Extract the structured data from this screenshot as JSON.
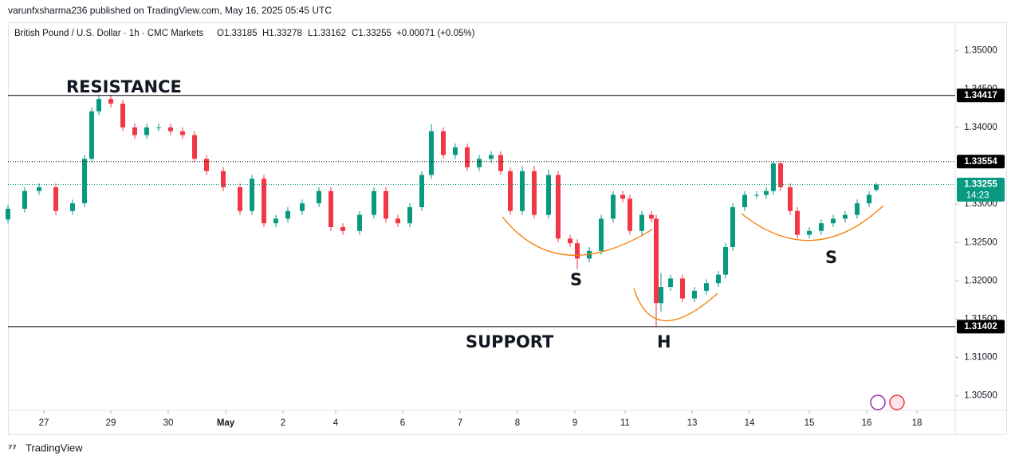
{
  "header": "varunfxsharma236 published on TradingView.com, May 16, 2025 05:45 UTC",
  "footer": "TradingView",
  "chart_data": {
    "type": "candlestick",
    "legend": {
      "symbol": "British Pound / U.S. Dollar · 1h · CMC Markets",
      "open": "O1.33185",
      "high": "H1.33278",
      "low": "L1.33162",
      "close": "C1.33255",
      "change": "+0.00071 (+0.05%)"
    },
    "x": [
      0,
      7,
      13,
      20,
      27,
      32,
      35,
      38,
      43,
      48,
      53,
      58,
      63,
      68,
      73,
      78,
      83,
      90,
      97,
      102,
      107,
      112,
      117,
      123,
      130,
      135,
      140,
      147,
      153,
      158,
      163,
      168,
      173,
      177,
      182,
      187,
      192,
      197,
      202,
      206,
      210,
      215,
      220,
      226,
      230,
      235,
      238,
      243,
      248,
      253,
      257,
      260,
      265,
      269,
      271,
      273,
      277,
      282,
      287,
      292,
      297,
      300,
      303,
      308,
      313,
      317,
      320,
      323,
      327,
      330,
      335,
      340,
      345,
      350,
      355,
      360,
      363
    ],
    "open": [
      1.328,
      1.3294,
      1.3317,
      1.3322,
      1.3291,
      1.3301,
      1.3359,
      1.3421,
      1.3437,
      1.3431,
      1.34,
      1.339,
      1.34,
      1.34,
      1.3395,
      1.339,
      1.3359,
      1.3343,
      1.3322,
      1.3291,
      1.3333,
      1.3275,
      1.3281,
      1.3291,
      1.3301,
      1.3317,
      1.327,
      1.3265,
      1.3286,
      1.3317,
      1.3281,
      1.3275,
      1.3296,
      1.3338,
      1.3395,
      1.3364,
      1.3374,
      1.3348,
      1.3359,
      1.3364,
      1.3343,
      1.3291,
      1.3343,
      1.3286,
      1.3338,
      1.3255,
      1.3249,
      1.3229,
      1.3239,
      1.3281,
      1.3312,
      1.3307,
      1.3265,
      1.3286,
      1.3281,
      1.3171,
      1.3192,
      1.3203,
      1.3177,
      1.3187,
      1.3197,
      1.3208,
      1.3244,
      1.3296,
      1.3312,
      1.3312,
      1.3317,
      1.3353,
      1.3322,
      1.3291,
      1.326,
      1.3265,
      1.3275,
      1.3281,
      1.3286,
      1.3301,
      1.33185
    ],
    "high": [
      1.3299,
      1.3322,
      1.3327,
      1.3327,
      1.3306,
      1.3364,
      1.3426,
      1.3442,
      1.3442,
      1.3436,
      1.3405,
      1.3405,
      1.3405,
      1.3405,
      1.34,
      1.3395,
      1.3364,
      1.3348,
      1.3327,
      1.3338,
      1.3338,
      1.3286,
      1.3296,
      1.3306,
      1.3322,
      1.3322,
      1.3275,
      1.3291,
      1.3322,
      1.3322,
      1.3286,
      1.3301,
      1.3343,
      1.3404,
      1.34,
      1.3379,
      1.3379,
      1.3364,
      1.3369,
      1.3369,
      1.3348,
      1.335,
      1.335,
      1.3345,
      1.3343,
      1.326,
      1.3254,
      1.3244,
      1.3286,
      1.3317,
      1.3317,
      1.3312,
      1.3291,
      1.3291,
      1.3286,
      1.321,
      1.3208,
      1.3208,
      1.3192,
      1.3202,
      1.3213,
      1.3249,
      1.3301,
      1.3317,
      1.3317,
      1.3322,
      1.3356,
      1.3356,
      1.3327,
      1.3296,
      1.327,
      1.328,
      1.3286,
      1.3291,
      1.3306,
      1.3317,
      1.33278
    ],
    "low": [
      1.3275,
      1.3289,
      1.3312,
      1.3286,
      1.3286,
      1.3296,
      1.3354,
      1.3416,
      1.3426,
      1.3395,
      1.3385,
      1.3385,
      1.3395,
      1.339,
      1.3385,
      1.3354,
      1.3338,
      1.3317,
      1.3286,
      1.3286,
      1.327,
      1.327,
      1.3276,
      1.3286,
      1.3296,
      1.3265,
      1.326,
      1.326,
      1.3281,
      1.3276,
      1.327,
      1.327,
      1.3291,
      1.3333,
      1.3359,
      1.3359,
      1.3343,
      1.3343,
      1.3354,
      1.3338,
      1.3286,
      1.3286,
      1.3281,
      1.3281,
      1.325,
      1.3244,
      1.3215,
      1.3224,
      1.3234,
      1.3276,
      1.3302,
      1.326,
      1.326,
      1.3276,
      1.314,
      1.316,
      1.3187,
      1.3172,
      1.3172,
      1.3182,
      1.3192,
      1.3203,
      1.3239,
      1.3291,
      1.3307,
      1.3307,
      1.3312,
      1.3317,
      1.3286,
      1.3255,
      1.3255,
      1.326,
      1.327,
      1.3276,
      1.3281,
      1.3296,
      1.33162
    ],
    "close": [
      1.3294,
      1.3317,
      1.3322,
      1.3291,
      1.3301,
      1.3359,
      1.3421,
      1.3437,
      1.3431,
      1.34,
      1.339,
      1.34,
      1.34,
      1.3395,
      1.339,
      1.3359,
      1.3343,
      1.3322,
      1.3291,
      1.3333,
      1.3275,
      1.3281,
      1.3291,
      1.3301,
      1.3317,
      1.327,
      1.3265,
      1.3286,
      1.3317,
      1.3281,
      1.3275,
      1.3296,
      1.3338,
      1.3395,
      1.3364,
      1.3374,
      1.3348,
      1.3359,
      1.3364,
      1.3343,
      1.3291,
      1.3343,
      1.3286,
      1.3338,
      1.3255,
      1.3249,
      1.3229,
      1.3239,
      1.3281,
      1.3312,
      1.3307,
      1.3265,
      1.3286,
      1.3281,
      1.3171,
      1.3192,
      1.3203,
      1.3177,
      1.3187,
      1.3197,
      1.3208,
      1.3244,
      1.3296,
      1.3312,
      1.3312,
      1.3317,
      1.3353,
      1.3322,
      1.3291,
      1.326,
      1.3265,
      1.3275,
      1.3281,
      1.3286,
      1.3301,
      1.3312,
      1.33255
    ],
    "up_color": "#089981",
    "down_color": "#f23645",
    "xlim": [
      0,
      396
    ],
    "xticks": [
      {
        "value": 15,
        "label": "27"
      },
      {
        "value": 43,
        "label": "29"
      },
      {
        "value": 67,
        "label": "30"
      },
      {
        "value": 91,
        "label": "May"
      },
      {
        "value": 115,
        "label": "2"
      },
      {
        "value": 137,
        "label": "4"
      },
      {
        "value": 165,
        "label": "6"
      },
      {
        "value": 189,
        "label": "7"
      },
      {
        "value": 213,
        "label": "8"
      },
      {
        "value": 237,
        "label": "9"
      },
      {
        "value": 258,
        "label": "11"
      },
      {
        "value": 286,
        "label": "13"
      },
      {
        "value": 310,
        "label": "14"
      },
      {
        "value": 335,
        "label": "15"
      },
      {
        "value": 359,
        "label": "16"
      },
      {
        "value": 380,
        "label": "18"
      }
    ],
    "ylim": [
      1.3031,
      1.3537
    ],
    "yticks": [
      {
        "value": 1.305,
        "label": "1.30500"
      },
      {
        "value": 1.31,
        "label": "1.31000"
      },
      {
        "value": 1.315,
        "label": "1.31500"
      },
      {
        "value": 1.32,
        "label": "1.32000"
      },
      {
        "value": 1.325,
        "label": "1.32500"
      },
      {
        "value": 1.33,
        "label": "1.33000"
      },
      {
        "value": 1.34,
        "label": "1.34000"
      },
      {
        "value": 1.345,
        "label": "1.34500"
      },
      {
        "value": 1.35,
        "label": "1.35000"
      }
    ],
    "levels": [
      {
        "value": 1.34417,
        "style": "solid",
        "color": "#000000"
      },
      {
        "value": 1.33554,
        "style": "dotted",
        "color": "#000000"
      },
      {
        "value": 1.33255,
        "style": "dotted",
        "color": "#089981",
        "countdown": "14:23"
      },
      {
        "value": 1.31402,
        "style": "solid",
        "color": "#000000"
      }
    ],
    "annotations": [
      "RESISTANCE",
      "SUPPORT",
      "S",
      "H",
      "S"
    ]
  }
}
